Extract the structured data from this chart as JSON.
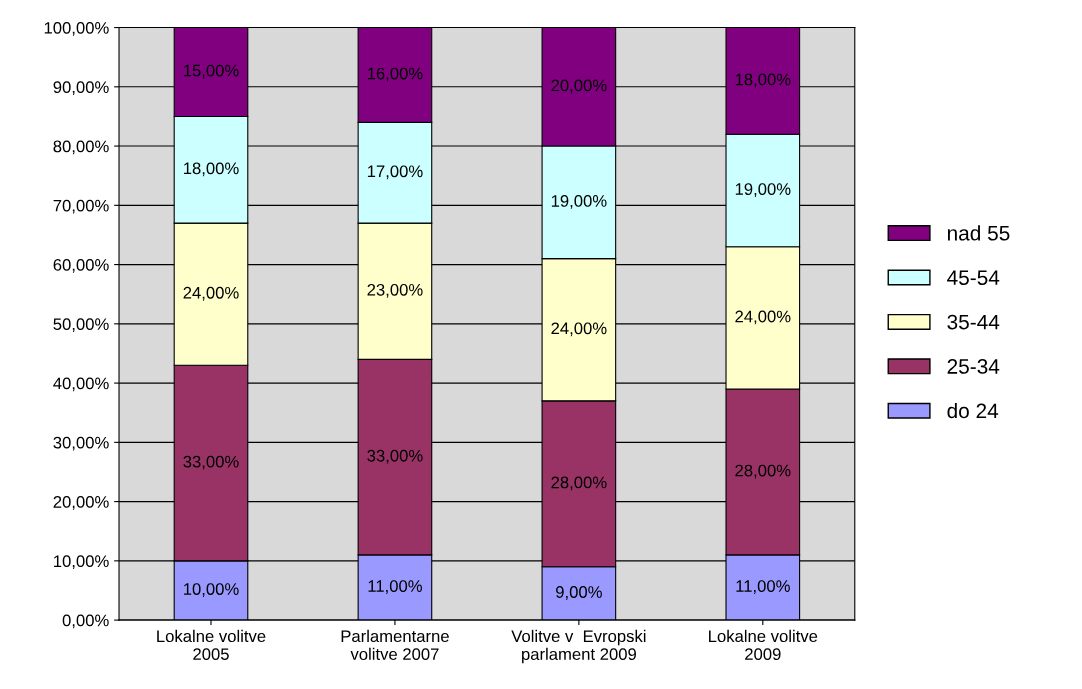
{
  "chart_data": {
    "type": "bar",
    "stacked": true,
    "categories": [
      "Lokalne volitve\n2005",
      "Parlamentarne\nvolitve 2007",
      "Volitve v  Evropski\nparlament 2009",
      "Lokalne volitve\n2009"
    ],
    "series": [
      {
        "name": "do 24",
        "color": "#9999ff",
        "values": [
          10,
          11,
          9,
          11
        ],
        "value_labels": [
          "10,00%",
          "11,00%",
          "9,00%",
          "11,00%"
        ]
      },
      {
        "name": "25-34",
        "color": "#993366",
        "values": [
          33,
          33,
          28,
          28
        ],
        "value_labels": [
          "33,00%",
          "33,00%",
          "28,00%",
          "28,00%"
        ]
      },
      {
        "name": "35-44",
        "color": "#ffffcc",
        "values": [
          24,
          23,
          24,
          24
        ],
        "value_labels": [
          "24,00%",
          "23,00%",
          "24,00%",
          "24,00%"
        ]
      },
      {
        "name": "45-54",
        "color": "#ccffff",
        "values": [
          18,
          17,
          19,
          19
        ],
        "value_labels": [
          "18,00%",
          "17,00%",
          "19,00%",
          "19,00%"
        ]
      },
      {
        "name": "nad 55",
        "color": "#800080",
        "values": [
          15,
          16,
          20,
          18
        ],
        "value_labels": [
          "15,00%",
          "16,00%",
          "20,00%",
          "18,00%"
        ]
      }
    ],
    "ylim": [
      0,
      100
    ],
    "yticks": [
      {
        "value": 0,
        "label": "0,00%"
      },
      {
        "value": 10,
        "label": "10,00%"
      },
      {
        "value": 20,
        "label": "20,00%"
      },
      {
        "value": 30,
        "label": "30,00%"
      },
      {
        "value": 40,
        "label": "40,00%"
      },
      {
        "value": 50,
        "label": "50,00%"
      },
      {
        "value": 60,
        "label": "60,00%"
      },
      {
        "value": 70,
        "label": "70,00%"
      },
      {
        "value": 80,
        "label": "80,00%"
      },
      {
        "value": 90,
        "label": "90,00%"
      },
      {
        "value": 100,
        "label": "100,00%"
      }
    ],
    "grid": "y",
    "legend": "right"
  }
}
